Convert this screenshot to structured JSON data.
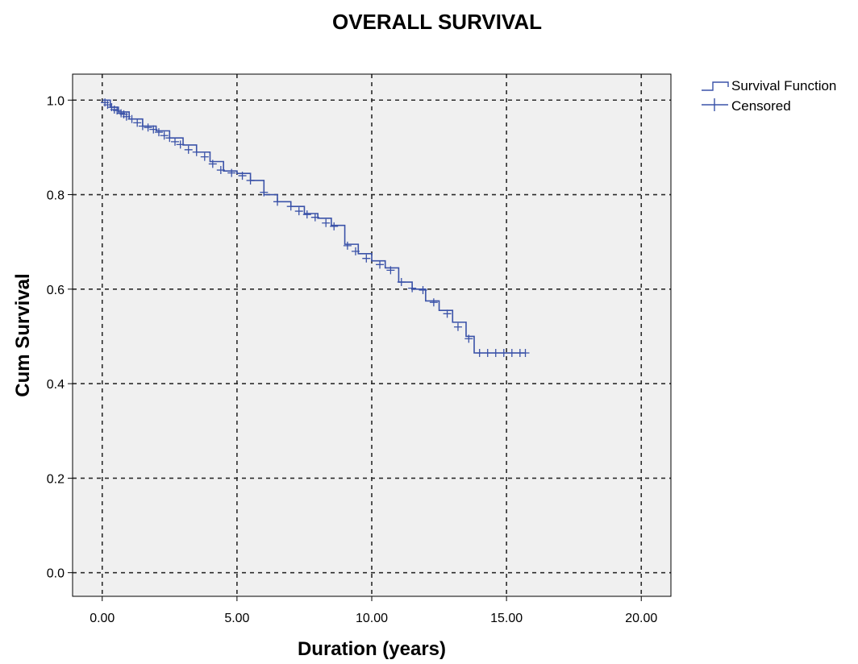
{
  "chart_data": {
    "type": "line",
    "title": "OVERALL SURVIVAL",
    "xlabel": "Duration (years)",
    "ylabel": "Cum Survival",
    "xlim": [
      -1.1,
      21.1
    ],
    "ylim": [
      -0.05,
      1.055
    ],
    "x_ticks": [
      0,
      5,
      10,
      15,
      20
    ],
    "x_tick_labels": [
      "0.00",
      "5.00",
      "10.00",
      "15.00",
      "20.00"
    ],
    "y_ticks": [
      0,
      0.2,
      0.4,
      0.6,
      0.8,
      1.0
    ],
    "y_tick_labels": [
      "0.0",
      "0.2",
      "0.4",
      "0.6",
      "0.8",
      "1.0"
    ],
    "grid": true,
    "legend_position": "outside-top-right",
    "colors": {
      "line": "#3a52a8",
      "plot_bg": "#f0f0f0",
      "grid": "#2b2b2b"
    },
    "legend": [
      {
        "label": "Survival Function",
        "icon": "step-line-icon"
      },
      {
        "label": "Censored",
        "icon": "plus-marker-icon"
      }
    ],
    "series": [
      {
        "name": "Survival Function",
        "kind": "step",
        "points": [
          [
            0,
            1.0
          ],
          [
            0.3,
            0.985
          ],
          [
            0.6,
            0.975
          ],
          [
            1.0,
            0.96
          ],
          [
            1.5,
            0.945
          ],
          [
            2.0,
            0.935
          ],
          [
            2.5,
            0.92
          ],
          [
            3.0,
            0.905
          ],
          [
            3.5,
            0.89
          ],
          [
            4.0,
            0.87
          ],
          [
            4.5,
            0.85
          ],
          [
            5.0,
            0.845
          ],
          [
            5.5,
            0.83
          ],
          [
            6.0,
            0.8
          ],
          [
            6.5,
            0.785
          ],
          [
            7.0,
            0.775
          ],
          [
            7.5,
            0.76
          ],
          [
            8.0,
            0.75
          ],
          [
            8.5,
            0.735
          ],
          [
            9.0,
            0.695
          ],
          [
            9.5,
            0.675
          ],
          [
            10.0,
            0.66
          ],
          [
            10.5,
            0.645
          ],
          [
            11.0,
            0.615
          ],
          [
            11.5,
            0.6
          ],
          [
            12.0,
            0.575
          ],
          [
            12.5,
            0.555
          ],
          [
            13.0,
            0.53
          ],
          [
            13.5,
            0.5
          ],
          [
            13.8,
            0.465
          ],
          [
            15.7,
            0.465
          ]
        ]
      },
      {
        "name": "Censored",
        "kind": "markers",
        "points": [
          [
            0.1,
            0.995
          ],
          [
            0.2,
            0.99
          ],
          [
            0.35,
            0.985
          ],
          [
            0.45,
            0.98
          ],
          [
            0.55,
            0.978
          ],
          [
            0.7,
            0.972
          ],
          [
            0.8,
            0.97
          ],
          [
            0.9,
            0.965
          ],
          [
            1.1,
            0.96
          ],
          [
            1.3,
            0.952
          ],
          [
            1.5,
            0.945
          ],
          [
            1.7,
            0.942
          ],
          [
            1.9,
            0.938
          ],
          [
            2.1,
            0.932
          ],
          [
            2.3,
            0.925
          ],
          [
            2.5,
            0.92
          ],
          [
            2.7,
            0.912
          ],
          [
            2.9,
            0.906
          ],
          [
            3.2,
            0.895
          ],
          [
            3.5,
            0.89
          ],
          [
            3.8,
            0.88
          ],
          [
            4.1,
            0.865
          ],
          [
            4.4,
            0.852
          ],
          [
            4.8,
            0.846
          ],
          [
            5.2,
            0.84
          ],
          [
            5.5,
            0.83
          ],
          [
            6.0,
            0.805
          ],
          [
            6.5,
            0.785
          ],
          [
            7.0,
            0.775
          ],
          [
            7.3,
            0.765
          ],
          [
            7.6,
            0.758
          ],
          [
            7.9,
            0.752
          ],
          [
            8.3,
            0.74
          ],
          [
            8.6,
            0.733
          ],
          [
            9.1,
            0.692
          ],
          [
            9.4,
            0.68
          ],
          [
            9.8,
            0.665
          ],
          [
            10.3,
            0.652
          ],
          [
            10.7,
            0.64
          ],
          [
            11.1,
            0.615
          ],
          [
            11.5,
            0.602
          ],
          [
            11.9,
            0.598
          ],
          [
            12.3,
            0.572
          ],
          [
            12.8,
            0.548
          ],
          [
            13.2,
            0.52
          ],
          [
            13.6,
            0.495
          ],
          [
            14.0,
            0.465
          ],
          [
            14.3,
            0.465
          ],
          [
            14.6,
            0.465
          ],
          [
            14.9,
            0.465
          ],
          [
            15.2,
            0.465
          ],
          [
            15.5,
            0.465
          ],
          [
            15.7,
            0.465
          ]
        ]
      }
    ]
  }
}
